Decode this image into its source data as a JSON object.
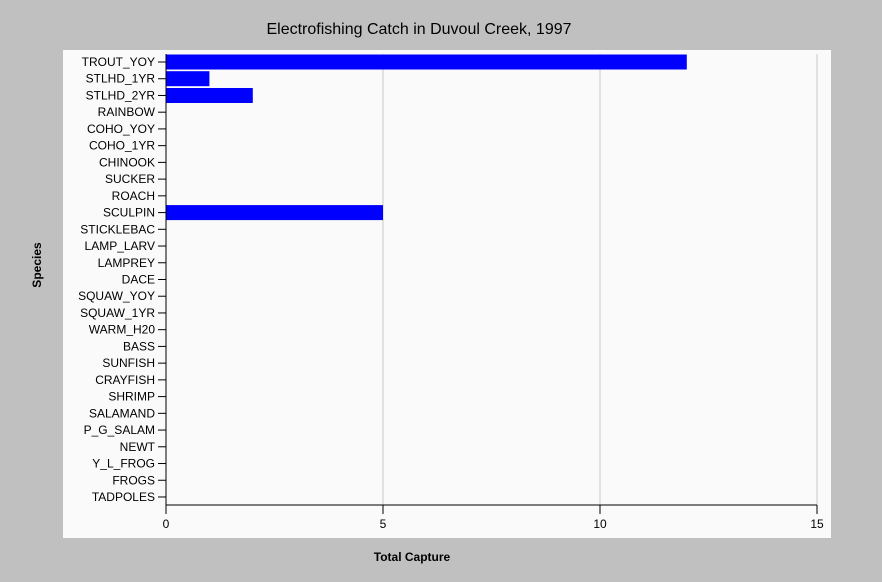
{
  "chart_data": {
    "type": "bar",
    "orientation": "horizontal",
    "title": "Electrofishing Catch in Duvoul Creek, 1997",
    "xlabel": "Total Capture",
    "ylabel": "Species",
    "xlim": [
      0,
      15
    ],
    "xticks": [
      0,
      5,
      10,
      15
    ],
    "grid": true,
    "bar_color": "#0000ff",
    "categories": [
      "TROUT_YOY",
      "STLHD_1YR",
      "STLHD_2YR",
      "RAINBOW",
      "COHO_YOY",
      "COHO_1YR",
      "CHINOOK",
      "SUCKER",
      "ROACH",
      "SCULPIN",
      "STICKLEBAC",
      "LAMP_LARV",
      "LAMPREY",
      "DACE",
      "SQUAW_YOY",
      "SQUAW_1YR",
      "WARM_H20",
      "BASS",
      "SUNFISH",
      "CRAYFISH",
      "SHRIMP",
      "SALAMAND",
      "P_G_SALAM",
      "NEWT",
      "Y_L_FROG",
      "FROGS",
      "TADPOLES"
    ],
    "values": [
      12,
      1,
      2,
      0,
      0,
      0,
      0,
      0,
      0,
      5,
      0,
      0,
      0,
      0,
      0,
      0,
      0,
      0,
      0,
      0,
      0,
      0,
      0,
      0,
      0,
      0,
      0
    ]
  }
}
